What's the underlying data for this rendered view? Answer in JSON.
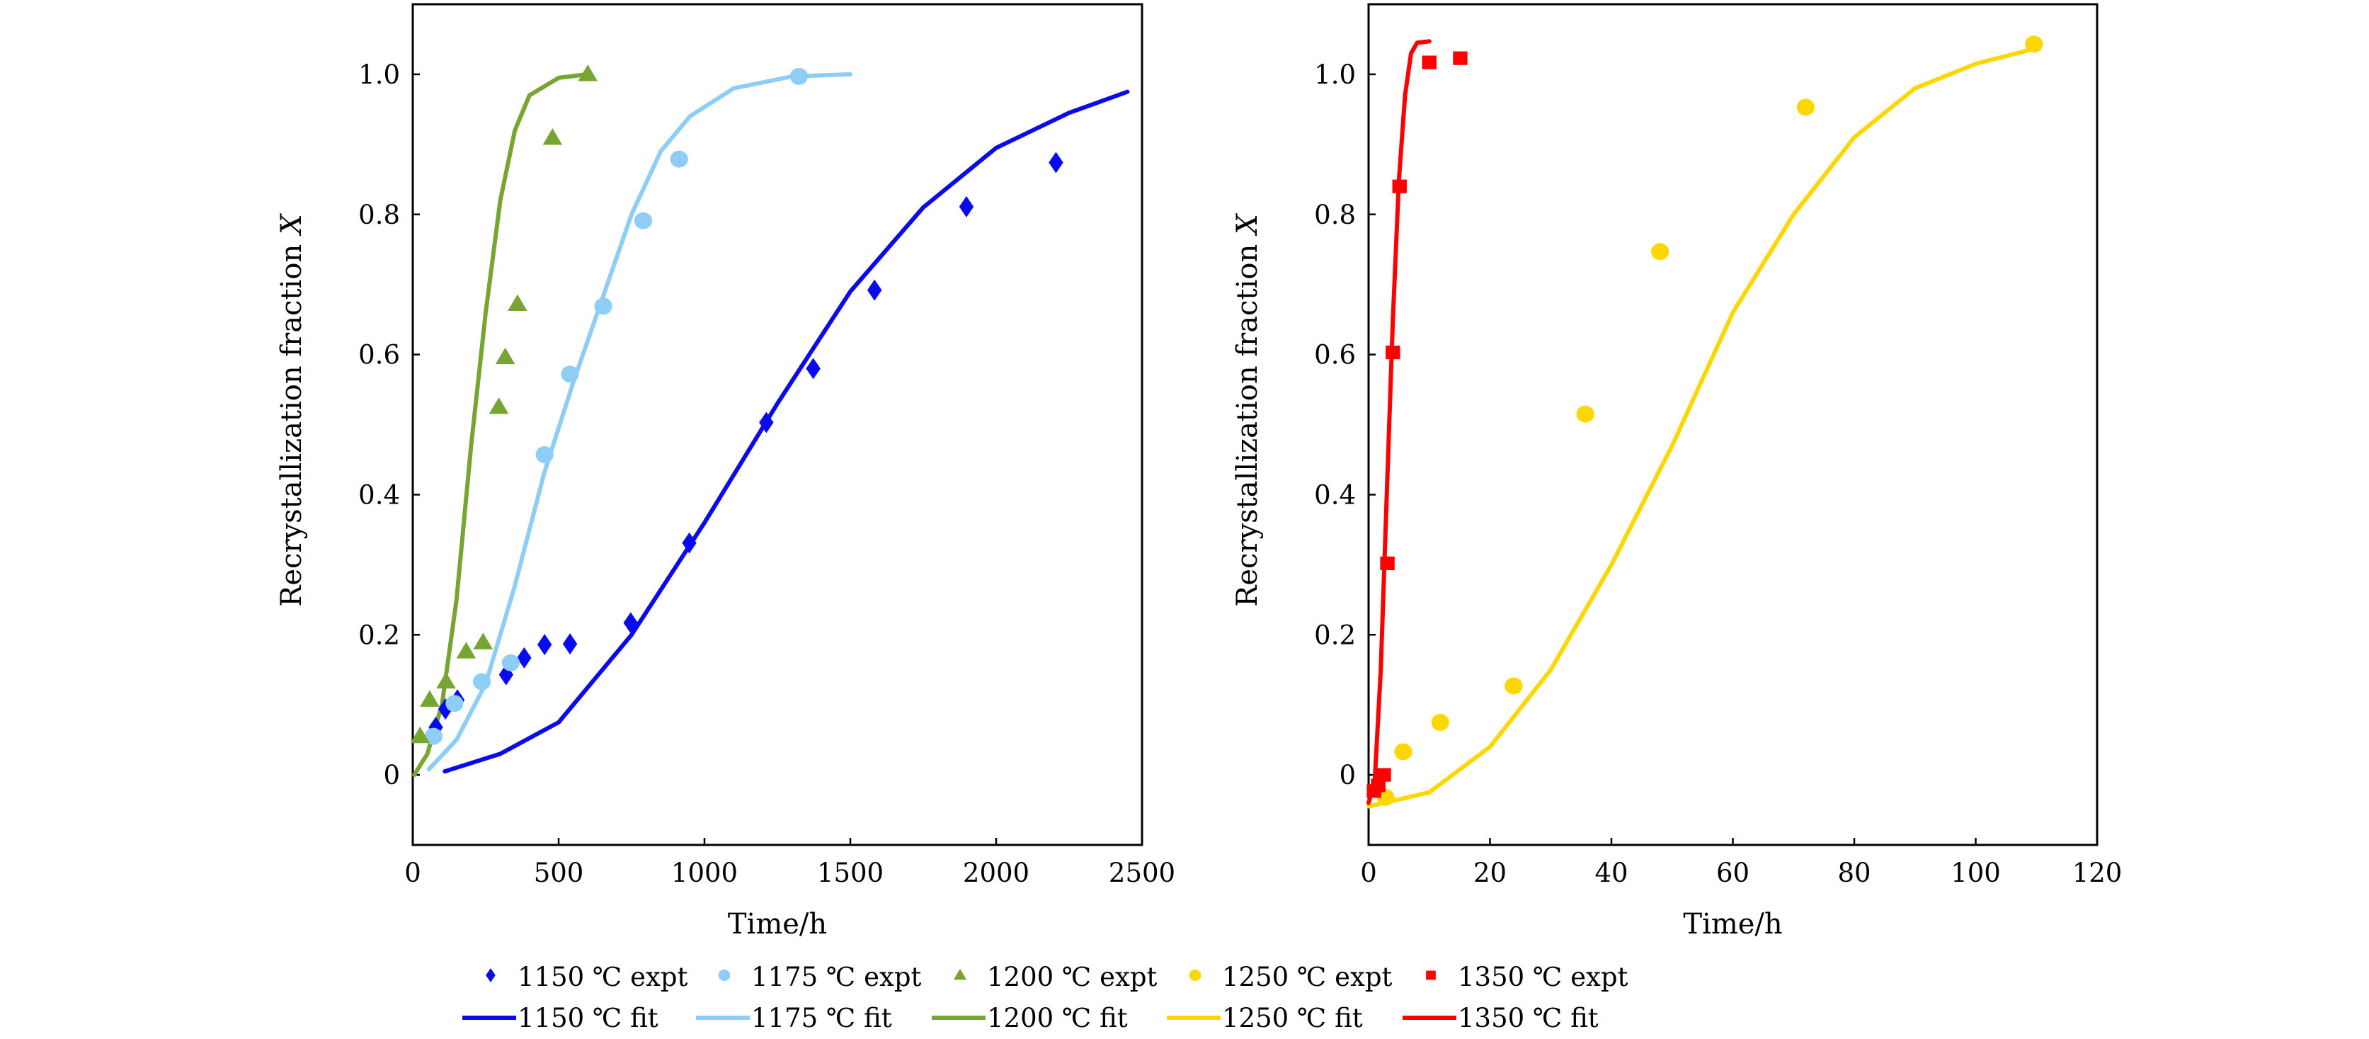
{
  "chart_data": [
    {
      "type": "scatter",
      "xlabel": "Time/h",
      "ylabel": "Recrystallization fraction",
      "ylabel_var": "X",
      "xlim": [
        0,
        2500
      ],
      "ylim": [
        -0.1,
        1.1
      ],
      "xticks": [
        0,
        500,
        1000,
        1500,
        2000,
        2500
      ],
      "yticks": [
        0,
        0.2,
        0.4,
        0.6,
        0.8,
        1.0
      ],
      "ytick_labels": [
        "0",
        "0.2",
        "0.4",
        "0.6",
        "0.8",
        "1.0"
      ],
      "grid": false,
      "series": [
        {
          "name": "1150 ℃ expt",
          "kind": "points",
          "marker": "diamond",
          "color": "#0a0aef",
          "x": [
            79,
            112,
            153,
            320,
            382,
            452,
            539,
            747,
            948,
            1212,
            1373,
            1583,
            1898,
            2205
          ],
          "y": [
            0.068,
            0.094,
            0.107,
            0.143,
            0.167,
            0.186,
            0.187,
            0.217,
            0.331,
            0.503,
            0.58,
            0.692,
            0.811,
            0.874
          ]
        },
        {
          "name": "1175 ℃ expt",
          "kind": "points",
          "marker": "circle",
          "color": "#8ecdf5",
          "x": [
            71,
            143,
            237,
            336,
            452,
            539,
            653,
            790,
            913,
            1324
          ],
          "y": [
            0.055,
            0.102,
            0.133,
            0.16,
            0.457,
            0.572,
            0.669,
            0.791,
            0.879,
            0.997
          ]
        },
        {
          "name": "1200 ℃ expt",
          "kind": "points",
          "marker": "triangle",
          "color": "#76a532",
          "x": [
            25,
            58,
            114,
            183,
            241,
            295,
            317,
            359,
            479,
            600
          ],
          "y": [
            0.055,
            0.107,
            0.133,
            0.176,
            0.189,
            0.525,
            0.596,
            0.672,
            0.909,
            1.0
          ]
        },
        {
          "name": "1150 ℃ fit",
          "kind": "line",
          "color": "#0a0aef",
          "x": [
            110,
            300,
            500,
            750,
            1000,
            1250,
            1500,
            1750,
            2000,
            2250,
            2450
          ],
          "y": [
            0.005,
            0.03,
            0.075,
            0.2,
            0.36,
            0.53,
            0.69,
            0.81,
            0.895,
            0.945,
            0.975
          ]
        },
        {
          "name": "1175 ℃ fit",
          "kind": "line",
          "color": "#8ecdf5",
          "x": [
            55,
            150,
            250,
            350,
            450,
            550,
            650,
            750,
            850,
            950,
            1100,
            1300,
            1500
          ],
          "y": [
            0.008,
            0.05,
            0.13,
            0.27,
            0.43,
            0.56,
            0.68,
            0.8,
            0.89,
            0.94,
            0.98,
            0.997,
            1.0
          ]
        },
        {
          "name": "1200 ℃ fit",
          "kind": "line",
          "color": "#76a532",
          "x": [
            5,
            50,
            100,
            150,
            200,
            250,
            300,
            350,
            400,
            500,
            600
          ],
          "y": [
            0.0,
            0.03,
            0.1,
            0.25,
            0.47,
            0.66,
            0.82,
            0.92,
            0.97,
            0.995,
            1.0
          ]
        }
      ]
    },
    {
      "type": "scatter",
      "xlabel": "Time/h",
      "ylabel": "Recrystallization fraction",
      "ylabel_var": "X",
      "xlim": [
        0,
        120
      ],
      "ylim": [
        -0.1,
        1.1
      ],
      "xticks": [
        0,
        20,
        40,
        60,
        80,
        100,
        120
      ],
      "yticks": [
        0,
        0.2,
        0.4,
        0.6,
        0.8,
        1.0
      ],
      "ytick_labels": [
        "0",
        "0.2",
        "0.4",
        "0.6",
        "0.8",
        "1.0"
      ],
      "grid": false,
      "series": [
        {
          "name": "1250 ℃ expt",
          "kind": "points",
          "marker": "circle",
          "color": "#ffd700",
          "x": [
            2.8,
            5.7,
            11.8,
            23.9,
            35.7,
            48.0,
            72.0,
            109.6
          ],
          "y": [
            -0.032,
            0.033,
            0.075,
            0.127,
            0.515,
            0.747,
            0.953,
            1.043
          ]
        },
        {
          "name": "1350 ℃ expt",
          "kind": "points",
          "marker": "square",
          "color": "#ff0000",
          "x": [
            0.9,
            1.6,
            2.5,
            3.1,
            4.0,
            5.1,
            10.0,
            15.1
          ],
          "y": [
            -0.023,
            -0.015,
            0.0,
            0.302,
            0.603,
            0.84,
            1.017,
            1.023
          ]
        },
        {
          "name": "1250 ℃ fit",
          "kind": "line",
          "color": "#ffd700",
          "x": [
            0,
            10,
            20,
            30,
            40,
            50,
            60,
            70,
            80,
            90,
            100,
            109
          ],
          "y": [
            -0.045,
            -0.025,
            0.04,
            0.15,
            0.3,
            0.47,
            0.66,
            0.8,
            0.91,
            0.98,
            1.015,
            1.035
          ]
        },
        {
          "name": "1350 ℃ fit",
          "kind": "line",
          "color": "#ff0000",
          "x": [
            0,
            1,
            2,
            3,
            4,
            5,
            6,
            7,
            8,
            10
          ],
          "y": [
            -0.04,
            -0.01,
            0.15,
            0.4,
            0.65,
            0.85,
            0.97,
            1.03,
            1.045,
            1.047
          ]
        }
      ]
    }
  ],
  "legend": {
    "placement": "bottom",
    "items": [
      {
        "label": "1150 ℃ expt",
        "marker": "diamond",
        "color": "#0a0aef"
      },
      {
        "label": "1175 ℃ expt",
        "marker": "circle",
        "color": "#8ecdf5"
      },
      {
        "label": "1200 ℃ expt",
        "marker": "triangle",
        "color": "#76a532"
      },
      {
        "label": "1250 ℃ expt",
        "marker": "circle",
        "color": "#ffd700"
      },
      {
        "label": "1350 ℃ expt",
        "marker": "square",
        "color": "#ff0000"
      },
      {
        "label": "1150 ℃ fit",
        "marker": "line",
        "color": "#0a0aef"
      },
      {
        "label": "1175 ℃ fit",
        "marker": "line",
        "color": "#8ecdf5"
      },
      {
        "label": "1200 ℃ fit",
        "marker": "line",
        "color": "#76a532"
      },
      {
        "label": "1250 ℃ fit",
        "marker": "line",
        "color": "#ffd700"
      },
      {
        "label": "1350 ℃ fit",
        "marker": "line",
        "color": "#ff0000"
      }
    ]
  }
}
